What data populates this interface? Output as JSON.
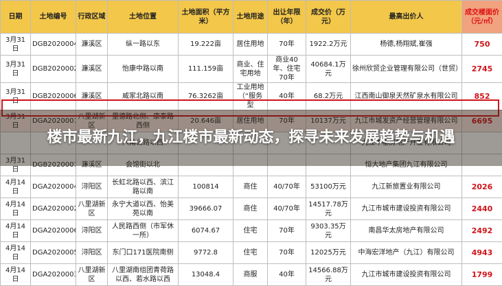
{
  "header": {
    "title": "楼市最新九江，九江楼市最新动态，探寻未来发展趋势与机遇"
  },
  "table": {
    "columns": [
      "日期",
      "土地编号",
      "行政区域",
      "土地位置",
      "土地面积（平方米）",
      "土地用途",
      "出让年限（年）",
      "成交价（万元）",
      "最高出价人",
      "成交楼面价（元/㎡）"
    ],
    "rows": [
      {
        "date": "3月31日",
        "code": "DGB2020004",
        "district": "濂溪区",
        "location": "纵一路以东",
        "area": "19.222亩",
        "use": "居住用地",
        "term": "70年",
        "price": "1922.2万元",
        "buyer": "杨德,杨翔斌,崔强",
        "unit_price": "750"
      },
      {
        "date": "3月31日",
        "code": "DGB2020002",
        "district": "濂溪区",
        "location": "怡康中路以南",
        "area": "111.159亩",
        "use": "商业、住宅用地",
        "term": "商业40年、住宅70年",
        "price": "40684.1万元",
        "buyer": "徐州欣贸企业管理有限公司（世贸）",
        "unit_price": "2745"
      },
      {
        "date": "3月31日",
        "code": "DGB2020006",
        "district": "濂溪区",
        "location": "威家北路以南",
        "area": "76.3262亩",
        "use": "工业用地（“服务型",
        "term": "40年",
        "price": "68.2万元",
        "buyer": "江西南山御泉天然矿泉水有限公司",
        "unit_price": "852"
      },
      {
        "date": "3月31日",
        "code": "DGA2020001",
        "district": "八里湖新区",
        "location": "里德路北侧、康泰路西侧",
        "area": "20.646亩",
        "use": "居住用地",
        "term": "70年",
        "price": "10137万元",
        "buyer": "九江市城发资产经营管理有限公司",
        "unit_price": "6695"
      },
      {
        "location": "八角公路以西",
        "buyer": "九江中基房地产开发有限公司"
      },
      {
        "date": "3月31日",
        "code": "DGB2020001",
        "district": "濂溪区",
        "location": "会馆街以北",
        "buyer": "恒大地产集团九江有限公司"
      },
      {
        "date": "4月14日",
        "code": "DGA2020004",
        "district": "浔阳区",
        "location": "长虹北路以西、滨江路以南",
        "area": "100814",
        "use": "商住",
        "term": "40/70年",
        "price": "53100万元",
        "buyer": "九江新旅置业有限公司",
        "unit_price": "2026"
      },
      {
        "date": "4月14日",
        "code": "DGA2020002",
        "district": "八里湖新区",
        "location": "永宁大道以西、怡美苑以南",
        "area": "39666.07",
        "use": "商住",
        "term": "40/70年",
        "price": "14517.78万元",
        "buyer": "九江市城市建设投资有限公司",
        "unit_price": "2440"
      },
      {
        "date": "4月14日",
        "code": "DGA2020006",
        "district": "浔阳区",
        "location": "人民路西侧（市军休一所）",
        "area": "6074.67",
        "use": "住宅",
        "term": "70年",
        "price": "9303.35万元",
        "buyer": "南昌华太房地产有限公司",
        "unit_price": "2492"
      },
      {
        "date": "4月14日",
        "code": "DGA2020005",
        "district": "浔阳区",
        "location": "东门口171医院南侧",
        "area": "9772.8",
        "use": "住宅",
        "term": "70年",
        "price": "12025万元",
        "buyer": "中海宏洋地产（九江）有限公司",
        "unit_price": "4943"
      },
      {
        "date": "4月14日",
        "code": "DGA2020003",
        "district": "八里湖新区",
        "location": "八里湖南组团青荷路以西、若水路以西",
        "area": "13048.4",
        "use": "商服",
        "term": "40年",
        "price": "14566.88万元",
        "buyer": "九江市城市建设投资有限公司",
        "unit_price": "1799"
      }
    ]
  }
}
